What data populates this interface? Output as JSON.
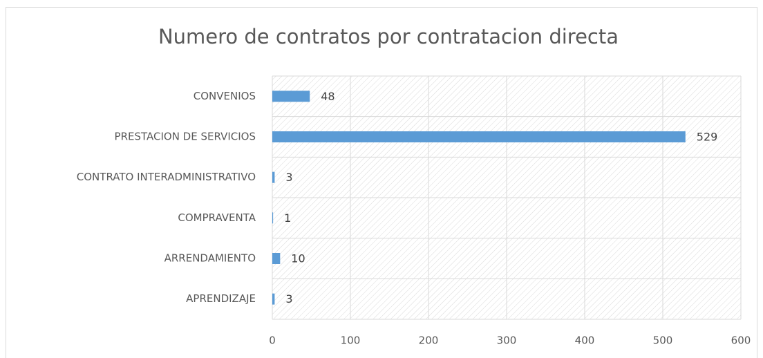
{
  "chart_data": {
    "type": "bar",
    "orientation": "horizontal",
    "title": "Numero de contratos por contratacion directa",
    "categories": [
      "CONVENIOS",
      "PRESTACION DE SERVICIOS",
      "CONTRATO INTERADMINISTRATIVO",
      "COMPRAVENTA",
      "ARRENDAMIENTO",
      "APRENDIZAJE"
    ],
    "values": [
      48,
      529,
      3,
      1,
      10,
      3
    ],
    "color": "#5b9bd5",
    "xlim": [
      0,
      600
    ],
    "xticks": [
      0,
      100,
      200,
      300,
      400,
      500,
      600
    ],
    "grid": true
  }
}
